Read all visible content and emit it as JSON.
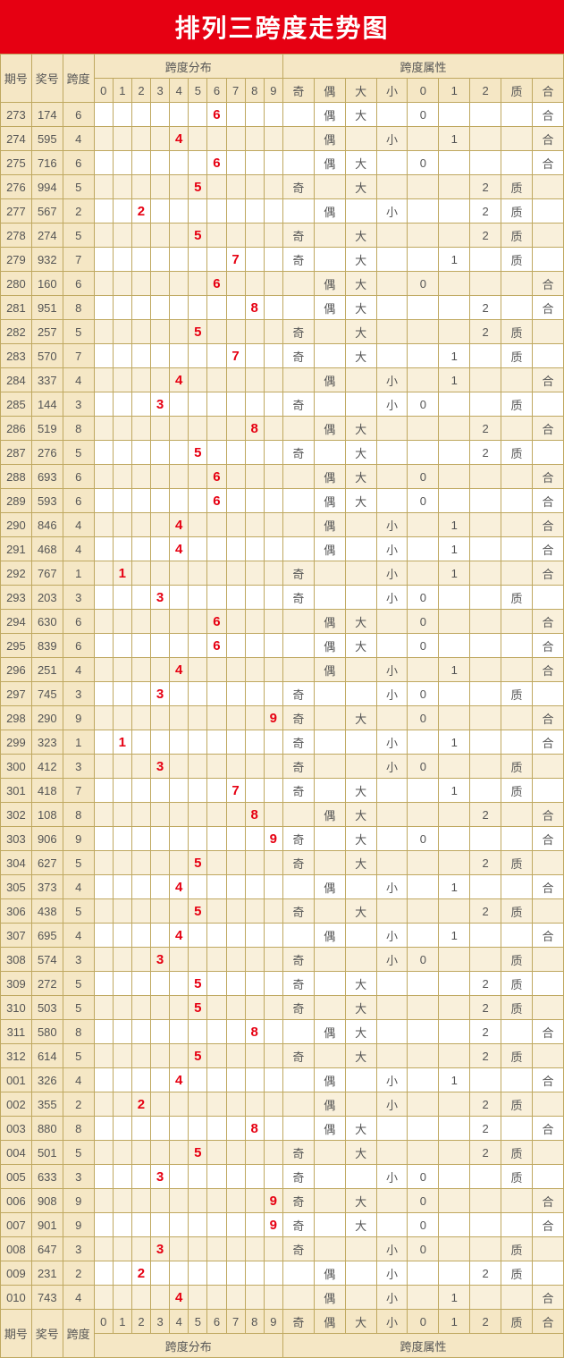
{
  "title": "排列三跨度走势图",
  "colors": {
    "header_bg": "#e60012",
    "header_fg": "#ffffff",
    "cell_border": "#bfa860",
    "th_bg": "#f5e7c5",
    "row_alt_bg": "#f9f0db",
    "mark_color": "#e60012",
    "text_color": "#555555"
  },
  "header": {
    "info_cols": [
      "期号",
      "奖号",
      "跨度"
    ],
    "dist_group": "跨度分布",
    "dist_cols": [
      "0",
      "1",
      "2",
      "3",
      "4",
      "5",
      "6",
      "7",
      "8",
      "9"
    ],
    "attr_group": "跨度属性",
    "attr_cols": [
      "奇",
      "偶",
      "大",
      "小",
      "0",
      "1",
      "2",
      "质",
      "合"
    ]
  },
  "attr_map": {
    "0": {
      "oe": "偶",
      "bs": "小",
      "mod": "0",
      "pc": "合"
    },
    "1": {
      "oe": "奇",
      "bs": "小",
      "mod": "1",
      "pc": "合"
    },
    "2": {
      "oe": "偶",
      "bs": "小",
      "mod": "2",
      "pc": "质"
    },
    "3": {
      "oe": "奇",
      "bs": "小",
      "mod": "0",
      "pc": "质"
    },
    "4": {
      "oe": "偶",
      "bs": "小",
      "mod": "1",
      "pc": "合"
    },
    "5": {
      "oe": "奇",
      "bs": "大",
      "mod": "2",
      "pc": "质"
    },
    "6": {
      "oe": "偶",
      "bs": "大",
      "mod": "0",
      "pc": "合"
    },
    "7": {
      "oe": "奇",
      "bs": "大",
      "mod": "1",
      "pc": "质"
    },
    "8": {
      "oe": "偶",
      "bs": "大",
      "mod": "2",
      "pc": "合"
    },
    "9": {
      "oe": "奇",
      "bs": "大",
      "mod": "0",
      "pc": "合"
    }
  },
  "rows": [
    {
      "q": "273",
      "j": "174",
      "k": 6
    },
    {
      "q": "274",
      "j": "595",
      "k": 4
    },
    {
      "q": "275",
      "j": "716",
      "k": 6
    },
    {
      "q": "276",
      "j": "994",
      "k": 5
    },
    {
      "q": "277",
      "j": "567",
      "k": 2
    },
    {
      "q": "278",
      "j": "274",
      "k": 5
    },
    {
      "q": "279",
      "j": "932",
      "k": 7
    },
    {
      "q": "280",
      "j": "160",
      "k": 6
    },
    {
      "q": "281",
      "j": "951",
      "k": 8
    },
    {
      "q": "282",
      "j": "257",
      "k": 5
    },
    {
      "q": "283",
      "j": "570",
      "k": 7
    },
    {
      "q": "284",
      "j": "337",
      "k": 4
    },
    {
      "q": "285",
      "j": "144",
      "k": 3
    },
    {
      "q": "286",
      "j": "519",
      "k": 8
    },
    {
      "q": "287",
      "j": "276",
      "k": 5
    },
    {
      "q": "288",
      "j": "693",
      "k": 6
    },
    {
      "q": "289",
      "j": "593",
      "k": 6
    },
    {
      "q": "290",
      "j": "846",
      "k": 4
    },
    {
      "q": "291",
      "j": "468",
      "k": 4
    },
    {
      "q": "292",
      "j": "767",
      "k": 1
    },
    {
      "q": "293",
      "j": "203",
      "k": 3
    },
    {
      "q": "294",
      "j": "630",
      "k": 6
    },
    {
      "q": "295",
      "j": "839",
      "k": 6
    },
    {
      "q": "296",
      "j": "251",
      "k": 4
    },
    {
      "q": "297",
      "j": "745",
      "k": 3
    },
    {
      "q": "298",
      "j": "290",
      "k": 9
    },
    {
      "q": "299",
      "j": "323",
      "k": 1
    },
    {
      "q": "300",
      "j": "412",
      "k": 3
    },
    {
      "q": "301",
      "j": "418",
      "k": 7
    },
    {
      "q": "302",
      "j": "108",
      "k": 8
    },
    {
      "q": "303",
      "j": "906",
      "k": 9
    },
    {
      "q": "304",
      "j": "627",
      "k": 5
    },
    {
      "q": "305",
      "j": "373",
      "k": 4
    },
    {
      "q": "306",
      "j": "438",
      "k": 5
    },
    {
      "q": "307",
      "j": "695",
      "k": 4
    },
    {
      "q": "308",
      "j": "574",
      "k": 3
    },
    {
      "q": "309",
      "j": "272",
      "k": 5
    },
    {
      "q": "310",
      "j": "503",
      "k": 5
    },
    {
      "q": "311",
      "j": "580",
      "k": 8
    },
    {
      "q": "312",
      "j": "614",
      "k": 5
    },
    {
      "q": "001",
      "j": "326",
      "k": 4
    },
    {
      "q": "002",
      "j": "355",
      "k": 2
    },
    {
      "q": "003",
      "j": "880",
      "k": 8
    },
    {
      "q": "004",
      "j": "501",
      "k": 5
    },
    {
      "q": "005",
      "j": "633",
      "k": 3
    },
    {
      "q": "006",
      "j": "908",
      "k": 9
    },
    {
      "q": "007",
      "j": "901",
      "k": 9
    },
    {
      "q": "008",
      "j": "647",
      "k": 3
    },
    {
      "q": "009",
      "j": "231",
      "k": 2
    },
    {
      "q": "010",
      "j": "743",
      "k": 4
    }
  ]
}
